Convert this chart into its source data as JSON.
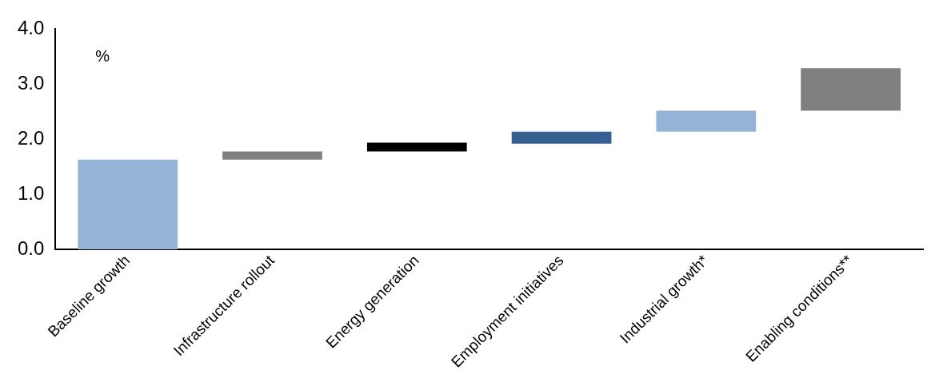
{
  "chart_data": {
    "type": "bar",
    "ylabel": "%",
    "categories": [
      "Baseline growth",
      "Infrastructure rollout",
      "Energy generation",
      "Employment initiatives",
      "Industrial growth*",
      "Enabling conditions**"
    ],
    "values": [
      1.63,
      0.15,
      0.16,
      0.22,
      0.38,
      0.77
    ],
    "base": [
      0,
      1.63,
      1.78,
      1.92,
      2.14,
      2.52
    ],
    "colors": [
      "#95b3d7",
      "#808080",
      "#000000",
      "#376092",
      "#95b3d7",
      "#808080"
    ],
    "ylim": [
      0,
      4
    ],
    "yticks": [
      {
        "value": 0,
        "label": "0.0"
      },
      {
        "value": 1,
        "label": "1.0"
      },
      {
        "value": 2,
        "label": "2.0"
      },
      {
        "value": 3,
        "label": "3.0"
      },
      {
        "value": 4,
        "label": "4.0"
      }
    ],
    "grid": false
  }
}
